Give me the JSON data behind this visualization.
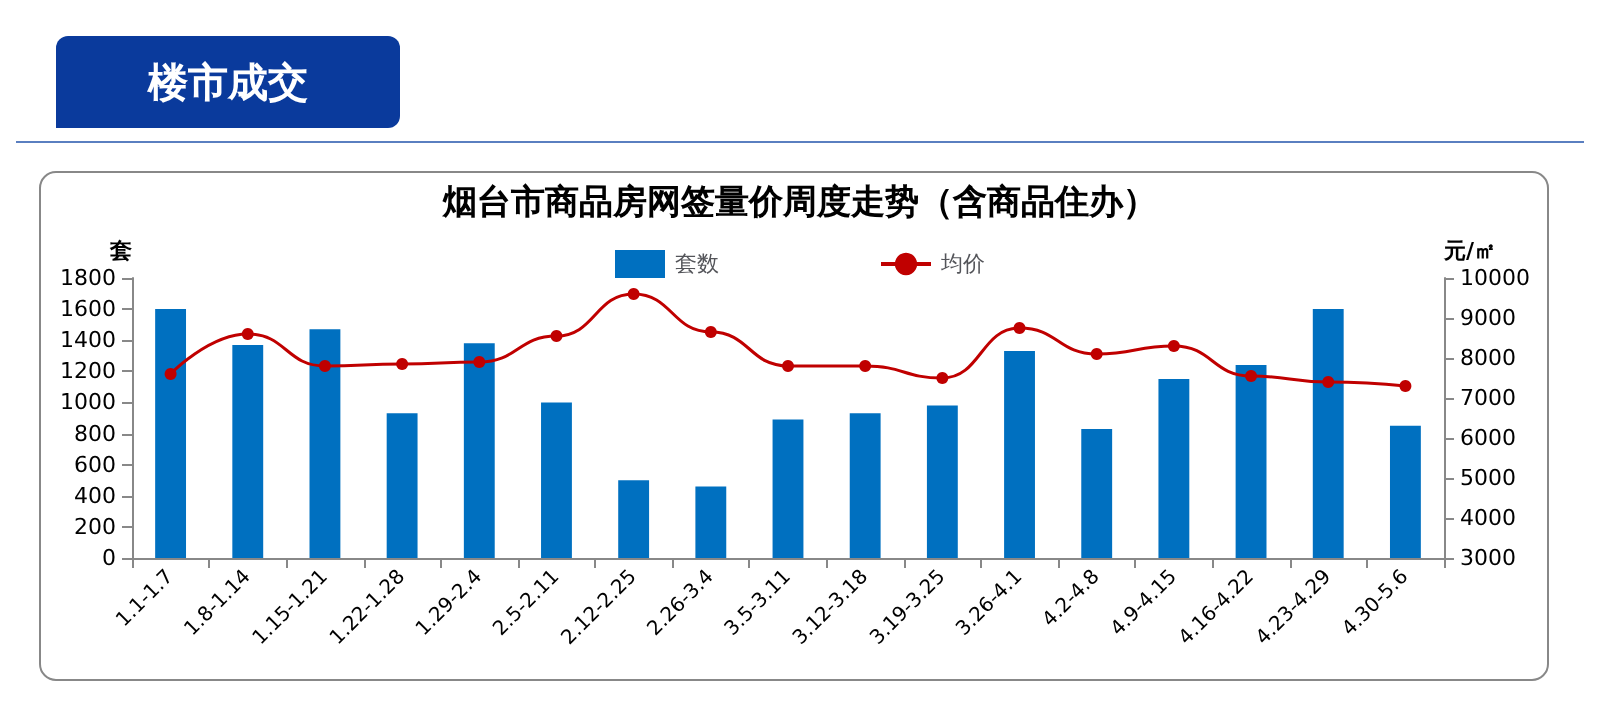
{
  "chart_data": {
    "type": "bar",
    "title": "烟台市商品房网签量价周度走势（含商品住办）",
    "annotations": [
      "楼市成交"
    ],
    "ylabel": "套",
    "y2label": "元/㎡",
    "categories": [
      "1.1-1.7",
      "1.8-1.14",
      "1.15-1.21",
      "1.22-1.28",
      "1.29-2.4",
      "2.5-2.11",
      "2.12-2.25",
      "2.26-3.4",
      "3.5-3.11",
      "3.12-3.18",
      "3.19-3.25",
      "3.26-4.1",
      "4.2-4.8",
      "4.9-4.15",
      "4.16-4.22",
      "4.23-4.29",
      "4.30-5.6"
    ],
    "series": [
      {
        "name": "套数",
        "color": "#0070c0",
        "values": [
          1600,
          1370,
          1470,
          930,
          1380,
          1000,
          500,
          460,
          890,
          930,
          980,
          1330,
          830,
          1150,
          1240,
          1600,
          850
        ]
      },
      {
        "name": "均价",
        "type": "line",
        "axis": "y2",
        "color": "#c00000",
        "marker": "circle",
        "values": [
          7600,
          8600,
          7800,
          7850,
          7900,
          8550,
          9600,
          8650,
          7800,
          7800,
          7500,
          8750,
          8100,
          8300,
          7550,
          7400,
          7300
        ]
      }
    ],
    "ylim": [
      0,
      1800
    ],
    "yticks": [
      0,
      200,
      400,
      600,
      800,
      1000,
      1200,
      1400,
      1600,
      1800
    ],
    "y2lim": [
      3000,
      10000
    ],
    "y2ticks": [
      3000,
      4000,
      5000,
      6000,
      7000,
      8000,
      9000,
      10000
    ],
    "legend": "top",
    "grid": false
  }
}
